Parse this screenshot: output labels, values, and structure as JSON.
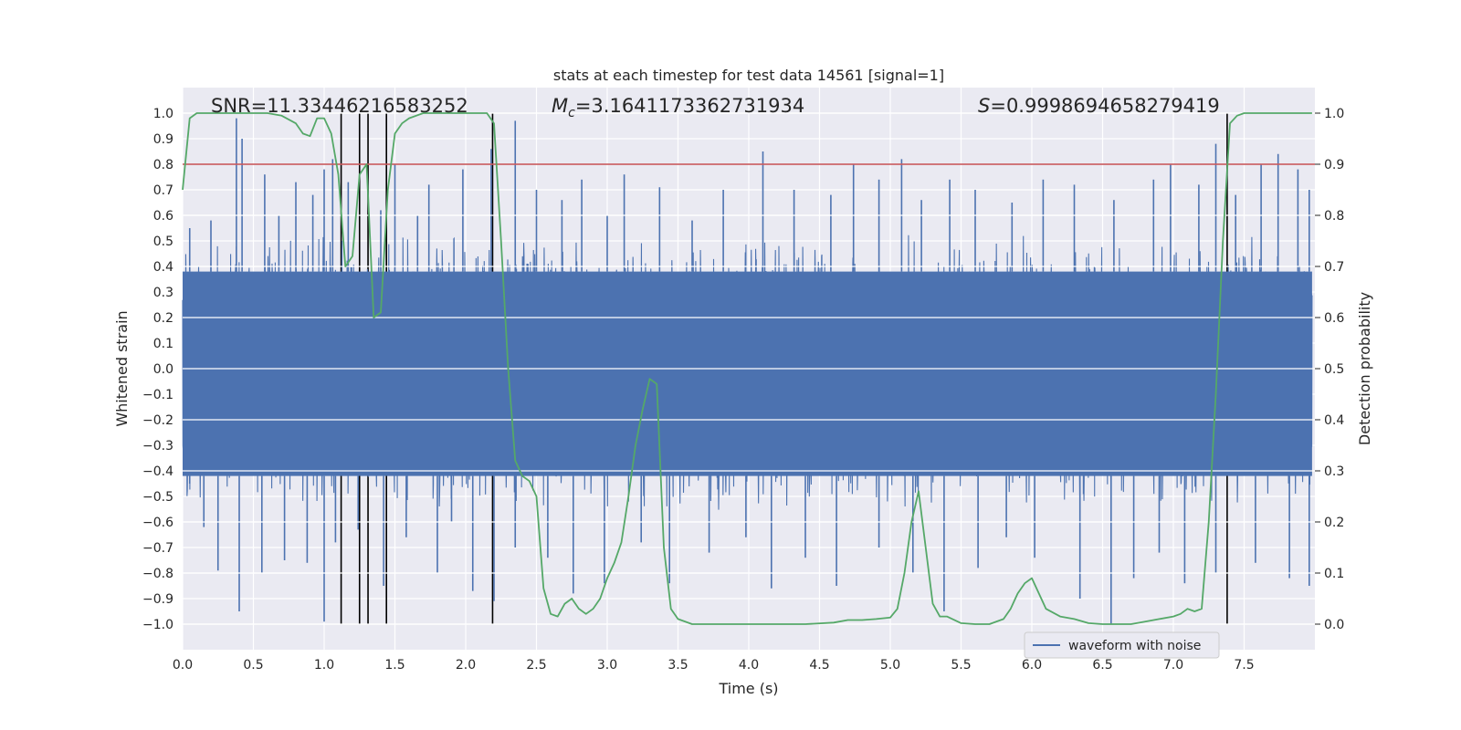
{
  "chart_data": {
    "type": "line",
    "title": "stats at each timestep for test data 14561 [signal=1]",
    "xlabel": "Time (s)",
    "ylabel": "Whitened strain",
    "y2label": "Detection probability",
    "xlim": [
      0.0,
      8.0
    ],
    "ylim": [
      -1.1,
      1.1
    ],
    "y2lim": [
      -0.05,
      1.05
    ],
    "xticks": [
      0.0,
      0.5,
      1.0,
      1.5,
      2.0,
      2.5,
      3.0,
      3.5,
      4.0,
      4.5,
      5.0,
      5.5,
      6.0,
      6.5,
      7.0,
      7.5
    ],
    "xtick_labels": [
      "0.0",
      "0.5",
      "1.0",
      "1.5",
      "2.0",
      "2.5",
      "3.0",
      "3.5",
      "4.0",
      "4.5",
      "5.0",
      "5.5",
      "6.0",
      "6.5",
      "7.0",
      "7.5"
    ],
    "yticks": [
      1.0,
      0.9,
      0.8,
      0.7,
      0.6,
      0.5,
      0.4,
      0.3,
      0.2,
      0.1,
      0.0,
      -0.1,
      -0.2,
      -0.3,
      -0.4,
      -0.5,
      -0.6,
      -0.7,
      -0.8,
      -0.9,
      -1.0
    ],
    "ytick_labels": [
      "1.0",
      "0.9",
      "0.8",
      "0.7",
      "0.6",
      "0.5",
      "0.4",
      "0.3",
      "0.2",
      "0.1",
      "0.0",
      "−0.1",
      "−0.2",
      "−0.3",
      "−0.4",
      "−0.5",
      "−0.6",
      "−0.7",
      "−0.8",
      "−0.9",
      "−1.0"
    ],
    "y2ticks": [
      1.0,
      0.9,
      0.8,
      0.7,
      0.6,
      0.5,
      0.4,
      0.3,
      0.2,
      0.1,
      0.0
    ],
    "y2tick_labels": [
      "1.0",
      "0.9",
      "0.8",
      "0.7",
      "0.6",
      "0.5",
      "0.4",
      "0.3",
      "0.2",
      "0.1",
      "0.0"
    ],
    "grid": true,
    "legend": {
      "position": "lower-right",
      "entries": [
        "waveform with noise"
      ]
    },
    "annotations": {
      "snr": "SNR=11.33446216583252",
      "mc_prefix": "M",
      "mc_sub": "c",
      "mc_value": "=3.1641173362731934",
      "s_prefix": "S",
      "s_value": "=0.9998694658279419"
    },
    "threshold_line": {
      "axis": "y2",
      "value": 0.9,
      "color": "#c44e52"
    },
    "vertical_lines": {
      "x": [
        1.12,
        1.25,
        1.31,
        1.44,
        2.19,
        7.38
      ],
      "color": "#000000"
    },
    "series": [
      {
        "name": "waveform with noise",
        "axis": "y",
        "color": "#4c72b0",
        "description": "dense noisy whitened strain, core band about -0.4..0.37, spikes up to about 1.0 and down to about -1.0",
        "core_band": [
          -0.42,
          0.38
        ],
        "spikes_up": [
          [
            0.05,
            0.55
          ],
          [
            0.2,
            0.58
          ],
          [
            0.38,
            0.98
          ],
          [
            0.42,
            0.9
          ],
          [
            0.58,
            0.76
          ],
          [
            0.68,
            0.6
          ],
          [
            0.8,
            0.73
          ],
          [
            0.92,
            0.68
          ],
          [
            1.0,
            0.78
          ],
          [
            1.06,
            0.82
          ],
          [
            1.17,
            0.73
          ],
          [
            1.4,
            0.62
          ],
          [
            1.5,
            0.8
          ],
          [
            1.66,
            0.6
          ],
          [
            1.74,
            0.72
          ],
          [
            1.98,
            0.78
          ],
          [
            2.18,
            0.86
          ],
          [
            2.35,
            0.97
          ],
          [
            2.5,
            0.7
          ],
          [
            2.68,
            0.66
          ],
          [
            2.82,
            0.74
          ],
          [
            3.0,
            0.6
          ],
          [
            3.12,
            0.76
          ],
          [
            3.37,
            0.71
          ],
          [
            3.6,
            0.58
          ],
          [
            3.82,
            0.7
          ],
          [
            4.1,
            0.85
          ],
          [
            4.32,
            0.7
          ],
          [
            4.58,
            0.68
          ],
          [
            4.74,
            0.8
          ],
          [
            4.92,
            0.74
          ],
          [
            5.08,
            0.82
          ],
          [
            5.22,
            0.66
          ],
          [
            5.42,
            0.74
          ],
          [
            5.6,
            0.7
          ],
          [
            5.86,
            0.65
          ],
          [
            6.08,
            0.74
          ],
          [
            6.3,
            0.72
          ],
          [
            6.58,
            0.66
          ],
          [
            6.86,
            0.74
          ],
          [
            6.98,
            0.8
          ],
          [
            7.18,
            0.72
          ],
          [
            7.3,
            0.88
          ],
          [
            7.44,
            0.68
          ],
          [
            7.62,
            0.8
          ],
          [
            7.74,
            0.84
          ],
          [
            7.88,
            0.78
          ],
          [
            7.96,
            0.7
          ]
        ],
        "spikes_down": [
          [
            0.05,
            -0.45
          ],
          [
            0.15,
            -0.62
          ],
          [
            0.25,
            -0.79
          ],
          [
            0.4,
            -0.95
          ],
          [
            0.56,
            -0.8
          ],
          [
            0.72,
            -0.75
          ],
          [
            0.88,
            -0.76
          ],
          [
            1.0,
            -0.99
          ],
          [
            1.08,
            -0.68
          ],
          [
            1.24,
            -0.63
          ],
          [
            1.42,
            -0.85
          ],
          [
            1.58,
            -0.66
          ],
          [
            1.8,
            -0.8
          ],
          [
            1.9,
            -0.6
          ],
          [
            2.05,
            -0.87
          ],
          [
            2.2,
            -0.91
          ],
          [
            2.35,
            -0.7
          ],
          [
            2.58,
            -0.74
          ],
          [
            2.76,
            -0.88
          ],
          [
            2.98,
            -0.84
          ],
          [
            3.24,
            -0.68
          ],
          [
            3.44,
            -0.84
          ],
          [
            3.72,
            -0.72
          ],
          [
            3.98,
            -0.66
          ],
          [
            4.16,
            -0.86
          ],
          [
            4.4,
            -0.74
          ],
          [
            4.62,
            -0.85
          ],
          [
            4.92,
            -0.7
          ],
          [
            5.16,
            -0.8
          ],
          [
            5.38,
            -0.95
          ],
          [
            5.62,
            -0.78
          ],
          [
            5.82,
            -0.66
          ],
          [
            6.02,
            -0.74
          ],
          [
            6.34,
            -0.9
          ],
          [
            6.56,
            -1.0
          ],
          [
            6.72,
            -0.82
          ],
          [
            6.9,
            -0.72
          ],
          [
            7.08,
            -0.84
          ],
          [
            7.3,
            -0.8
          ],
          [
            7.58,
            -0.76
          ],
          [
            7.82,
            -0.82
          ],
          [
            7.96,
            -0.85
          ]
        ]
      },
      {
        "name": "detection probability",
        "axis": "y2",
        "color": "#55a868",
        "x": [
          0.0,
          0.05,
          0.1,
          0.15,
          0.2,
          0.3,
          0.4,
          0.5,
          0.6,
          0.7,
          0.8,
          0.85,
          0.9,
          0.95,
          1.0,
          1.05,
          1.1,
          1.15,
          1.2,
          1.25,
          1.3,
          1.35,
          1.4,
          1.45,
          1.5,
          1.55,
          1.6,
          1.7,
          1.8,
          1.9,
          2.0,
          2.1,
          2.15,
          2.2,
          2.25,
          2.3,
          2.35,
          2.4,
          2.45,
          2.5,
          2.55,
          2.6,
          2.65,
          2.7,
          2.75,
          2.8,
          2.85,
          2.9,
          2.95,
          3.0,
          3.05,
          3.1,
          3.15,
          3.2,
          3.25,
          3.3,
          3.35,
          3.4,
          3.45,
          3.5,
          3.6,
          3.7,
          3.8,
          3.9,
          4.0,
          4.2,
          4.4,
          4.6,
          4.7,
          4.8,
          4.9,
          5.0,
          5.05,
          5.1,
          5.15,
          5.2,
          5.25,
          5.3,
          5.35,
          5.4,
          5.5,
          5.6,
          5.7,
          5.8,
          5.85,
          5.9,
          5.95,
          6.0,
          6.05,
          6.1,
          6.2,
          6.3,
          6.4,
          6.5,
          6.6,
          6.7,
          6.8,
          6.9,
          7.0,
          7.05,
          7.1,
          7.15,
          7.2,
          7.25,
          7.3,
          7.35,
          7.4,
          7.45,
          7.5,
          7.6,
          7.7,
          7.8,
          7.9,
          7.98
        ],
        "values": [
          0.85,
          0.99,
          1.0,
          1.0,
          1.0,
          1.0,
          1.0,
          1.0,
          1.0,
          0.995,
          0.98,
          0.96,
          0.955,
          0.99,
          0.99,
          0.96,
          0.88,
          0.7,
          0.72,
          0.88,
          0.9,
          0.6,
          0.61,
          0.85,
          0.96,
          0.98,
          0.99,
          1.0,
          1.0,
          1.0,
          1.0,
          1.0,
          1.0,
          0.98,
          0.75,
          0.5,
          0.32,
          0.29,
          0.28,
          0.25,
          0.07,
          0.02,
          0.015,
          0.04,
          0.05,
          0.03,
          0.02,
          0.03,
          0.05,
          0.09,
          0.12,
          0.16,
          0.25,
          0.35,
          0.42,
          0.48,
          0.47,
          0.15,
          0.03,
          0.01,
          0.0,
          0.0,
          0.0,
          0.0,
          0.0,
          0.0,
          0.0,
          0.003,
          0.008,
          0.008,
          0.01,
          0.013,
          0.03,
          0.1,
          0.2,
          0.26,
          0.15,
          0.04,
          0.015,
          0.015,
          0.002,
          0.0,
          0.0,
          0.01,
          0.03,
          0.06,
          0.08,
          0.09,
          0.06,
          0.03,
          0.015,
          0.01,
          0.002,
          0.0,
          0.0,
          0.0,
          0.005,
          0.01,
          0.015,
          0.02,
          0.03,
          0.025,
          0.03,
          0.2,
          0.45,
          0.75,
          0.98,
          0.995,
          1.0,
          1.0,
          1.0,
          1.0,
          1.0,
          1.0
        ]
      }
    ]
  }
}
